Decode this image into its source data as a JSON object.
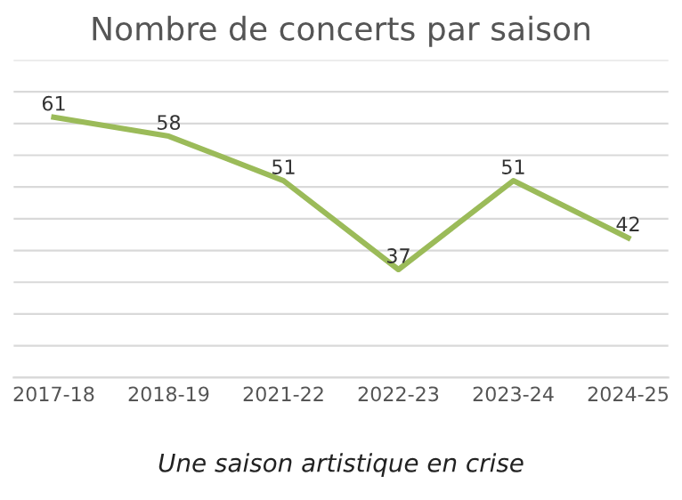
{
  "chart_data": {
    "type": "line",
    "title": "Nombre de concerts par saison",
    "categories": [
      "2017-18",
      "2018-19",
      "2021-22",
      "2022-23",
      "2023-24",
      "2024-25"
    ],
    "series": [
      {
        "color": "#9bbb59",
        "values": [
          61,
          58,
          51,
          37,
          51,
          42
        ]
      }
    ],
    "ylim": [
      20,
      70
    ],
    "yticks": [
      {
        "value": 20,
        "label": null
      },
      {
        "value": 25,
        "label": null
      },
      {
        "value": 30,
        "label": null
      },
      {
        "value": 35,
        "label": null
      },
      {
        "value": 40,
        "label": null
      },
      {
        "value": 45,
        "label": null
      },
      {
        "value": 50,
        "label": null
      },
      {
        "value": 55,
        "label": null
      },
      {
        "value": 60,
        "label": null
      },
      {
        "value": 65,
        "label": null
      },
      {
        "value": 70,
        "label": null
      }
    ],
    "grid": "y",
    "data_labels": true,
    "marker": "none",
    "line_style": "solid",
    "annotations": [
      "Une saison artistique en crise"
    ]
  }
}
